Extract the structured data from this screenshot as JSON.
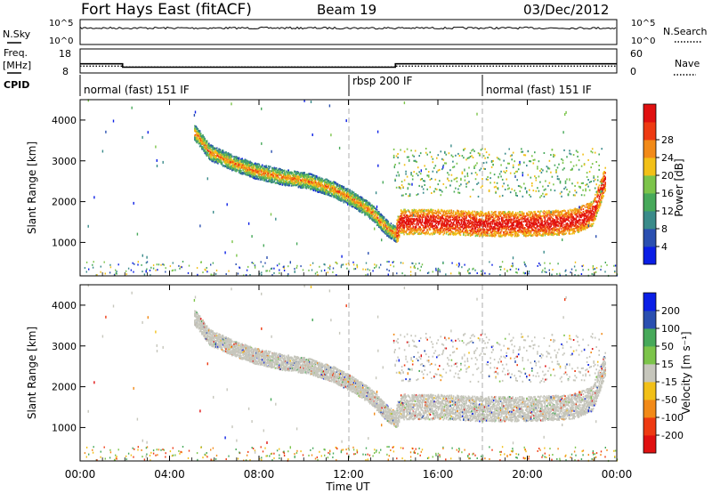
{
  "header": {
    "station": "Fort Hays East (fitACF)",
    "beam": "Beam 19",
    "date": "03/Dec/2012"
  },
  "labels": {
    "nsky": "N.Sky",
    "nsearch": "N.Search",
    "freq": "Freq.",
    "freq_unit": "[MHz]",
    "nave": "Nave",
    "cpid": "CPID"
  },
  "noise_panel": {
    "left_ticks": [
      "10^5",
      "10^0"
    ],
    "right_ticks": [
      "10^5",
      "10^0"
    ]
  },
  "freq_panel": {
    "left_ticks": [
      "18",
      "8"
    ],
    "right_ticks": [
      "60",
      "0"
    ],
    "steps": [
      {
        "start_hour": 0.0,
        "end_hour": 1.9,
        "freq": 11.8,
        "nave": 17
      },
      {
        "start_hour": 1.9,
        "end_hour": 14.1,
        "freq": 10.4,
        "nave": 15
      },
      {
        "start_hour": 14.1,
        "end_hour": 24.0,
        "freq": 11.8,
        "nave": 17
      }
    ]
  },
  "cpid_segments": [
    {
      "label": "normal (fast) 151 IF",
      "start_hour": 0.0
    },
    {
      "label": "rbsp 200 IF",
      "start_hour": 12.0
    },
    {
      "label": "normal (fast) 151 IF",
      "start_hour": 18.0
    }
  ],
  "range_axis": {
    "label": "Slant Range [km]",
    "ticks": [
      "1000",
      "2000",
      "3000",
      "4000"
    ],
    "min": 180,
    "max": 4500
  },
  "time_axis": {
    "label": "Time UT",
    "ticks": [
      "00:00",
      "04:00",
      "08:00",
      "12:00",
      "16:00",
      "20:00",
      "00:00"
    ],
    "min_hour": 0,
    "max_hour": 24
  },
  "chart_data": [
    {
      "type": "heatmap",
      "panel": "power",
      "colorbar_label": "Power [dB]",
      "colorbar_ticks": [
        "4",
        "8",
        "12",
        "16",
        "20",
        "24",
        "28"
      ],
      "colorbar_colors": [
        "#0a1ee6",
        "#2a4fb0",
        "#3a8b8a",
        "#47a95a",
        "#7cc44a",
        "#f2c018",
        "#f28a18",
        "#ee3a12",
        "#e01010"
      ],
      "band_trace": [
        {
          "hour": 5.1,
          "range": 3700
        },
        {
          "hour": 5.8,
          "range": 3200
        },
        {
          "hour": 6.8,
          "range": 2950
        },
        {
          "hour": 7.8,
          "range": 2750
        },
        {
          "hour": 9.0,
          "range": 2600
        },
        {
          "hour": 10.2,
          "range": 2500
        },
        {
          "hour": 11.3,
          "range": 2300
        },
        {
          "hour": 12.2,
          "range": 2050
        },
        {
          "hour": 13.0,
          "range": 1750
        },
        {
          "hour": 13.7,
          "range": 1350
        },
        {
          "hour": 14.1,
          "range": 1200
        },
        {
          "hour": 14.3,
          "range": 1500
        },
        {
          "hour": 16.0,
          "range": 1500
        },
        {
          "hour": 18.0,
          "range": 1450
        },
        {
          "hour": 20.0,
          "range": 1450
        },
        {
          "hour": 22.0,
          "range": 1500
        },
        {
          "hour": 22.9,
          "range": 1700
        },
        {
          "hour": 23.5,
          "range": 2600
        }
      ]
    },
    {
      "type": "heatmap",
      "panel": "velocity",
      "colorbar_label": "Velocity [m s⁻¹]",
      "colorbar_ticks": [
        "-200",
        "-100",
        "-50",
        "-15",
        "15",
        "50",
        "100",
        "200"
      ],
      "colorbar_colors": [
        "#e01010",
        "#ee3a12",
        "#f28a18",
        "#f2c018",
        "#c6c6bc",
        "#7cc44a",
        "#47a95a",
        "#2a4fb0",
        "#0a1ee6"
      ],
      "dominant_value": "ground scatter (grey)"
    }
  ]
}
